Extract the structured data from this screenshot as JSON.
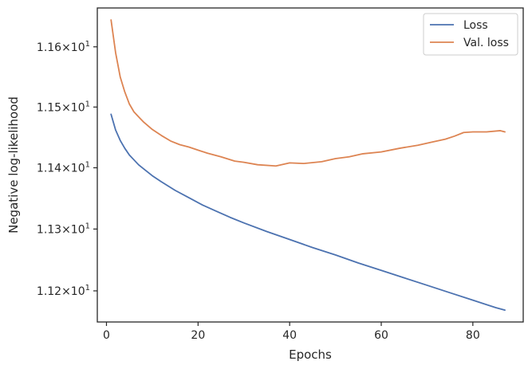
{
  "chart_data": {
    "type": "line",
    "xlabel": "Epochs",
    "ylabel": "Negative log-likelihood",
    "xlim": [
      -2,
      91
    ],
    "ylim": [
      11.15,
      11.665
    ],
    "yscale": "log",
    "grid": false,
    "legend_placement": "top-right",
    "xticks": [
      0,
      20,
      40,
      60,
      80
    ],
    "xtick_labels": [
      "0",
      "20",
      "40",
      "60",
      "80"
    ],
    "yticks": [
      11.2,
      11.3,
      11.4,
      11.5,
      11.6
    ],
    "ytick_labels": [
      {
        "mantissa": "1.12",
        "base": "10",
        "exp": "1"
      },
      {
        "mantissa": "1.13",
        "base": "10",
        "exp": "1"
      },
      {
        "mantissa": "1.14",
        "base": "10",
        "exp": "1"
      },
      {
        "mantissa": "1.15",
        "base": "10",
        "exp": "1"
      },
      {
        "mantissa": "1.16",
        "base": "10",
        "exp": "1"
      }
    ],
    "series": [
      {
        "name": "Loss",
        "color": "#4c72b0",
        "x": [
          1,
          2,
          3,
          4,
          5,
          6,
          7,
          8,
          10,
          12,
          15,
          18,
          21,
          24,
          27,
          30,
          35,
          40,
          45,
          50,
          55,
          60,
          65,
          70,
          75,
          80,
          85,
          87
        ],
        "y": [
          11.488,
          11.462,
          11.445,
          11.432,
          11.421,
          11.413,
          11.405,
          11.399,
          11.387,
          11.377,
          11.363,
          11.351,
          11.339,
          11.329,
          11.319,
          11.31,
          11.296,
          11.283,
          11.27,
          11.258,
          11.245,
          11.233,
          11.221,
          11.209,
          11.197,
          11.185,
          11.173,
          11.169
        ]
      },
      {
        "name": "Val. loss",
        "color": "#dd8452",
        "x": [
          1,
          2,
          3,
          4,
          5,
          6,
          7,
          8,
          10,
          12,
          14,
          16,
          18,
          20,
          22,
          25,
          28,
          30,
          33,
          37,
          40,
          43,
          47,
          50,
          53,
          56,
          60,
          64,
          68,
          71,
          74,
          76,
          78,
          80,
          83,
          86,
          87
        ],
        "y": [
          11.645,
          11.59,
          11.55,
          11.525,
          11.505,
          11.492,
          11.484,
          11.476,
          11.463,
          11.453,
          11.444,
          11.438,
          11.434,
          11.429,
          11.424,
          11.418,
          11.411,
          11.409,
          11.405,
          11.403,
          11.408,
          11.407,
          11.41,
          11.415,
          11.418,
          11.423,
          11.426,
          11.432,
          11.437,
          11.442,
          11.447,
          11.452,
          11.458,
          11.459,
          11.459,
          11.461,
          11.459
        ]
      }
    ]
  }
}
